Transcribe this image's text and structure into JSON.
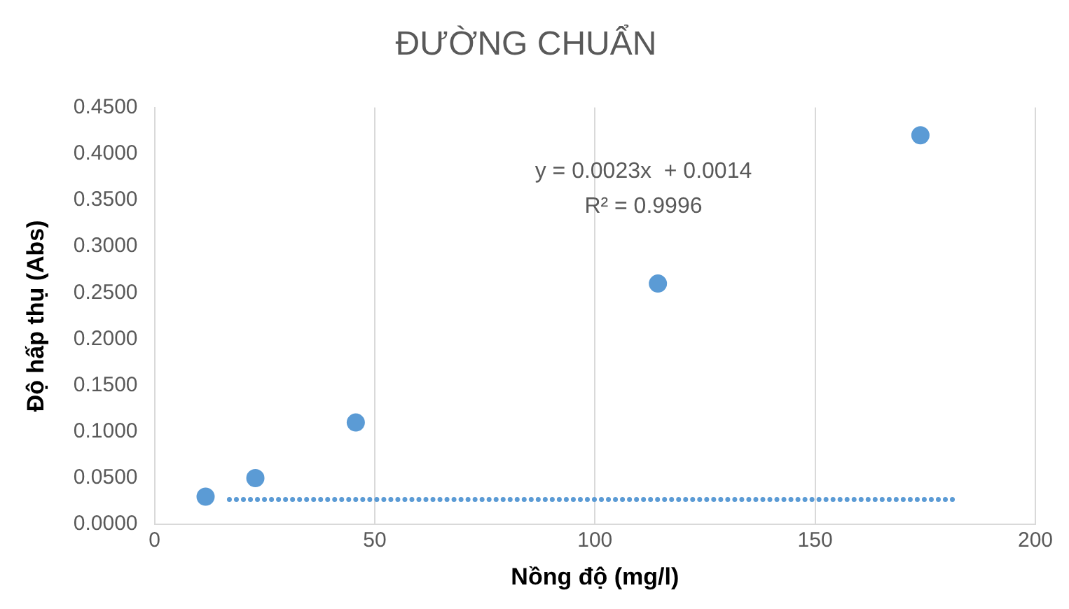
{
  "chart_data": {
    "type": "scatter",
    "title": "ĐƯỜNG CHUẨN",
    "xlabel": "Nồng độ (mg/l)",
    "ylabel": "Độ hấp thụ (Abs)",
    "series": [
      {
        "color": "#5b9bd5",
        "marker": "circle",
        "x": [
          11.6,
          22.9,
          45.7,
          114.3,
          173.9
        ],
        "values": [
          0.03,
          0.05,
          0.11,
          0.26,
          0.42
        ]
      },
      {
        "type": "line",
        "color": "#5b9bd5",
        "line_style": "dotted",
        "marker": "none",
        "x": [
          17,
          182
        ],
        "values": [
          0.027,
          0.027
        ]
      }
    ],
    "xlim": [
      0,
      200
    ],
    "xticks": [
      0,
      50,
      100,
      150,
      200
    ],
    "ylim": [
      0,
      0.45
    ],
    "yticks": [
      {
        "value": 0,
        "label": "0.0000"
      },
      {
        "value": 0.05,
        "label": "0.0500"
      },
      {
        "value": 0.1,
        "label": "0.1000"
      },
      {
        "value": 0.15,
        "label": "0.1500"
      },
      {
        "value": 0.2,
        "label": "0.2000"
      },
      {
        "value": 0.25,
        "label": "0.2500"
      },
      {
        "value": 0.3,
        "label": "0.3000"
      },
      {
        "value": 0.35,
        "label": "0.3500"
      },
      {
        "value": 0.4,
        "label": "0.4000"
      },
      {
        "value": 0.45,
        "label": "0.4500"
      }
    ],
    "grid": "x",
    "legend": false,
    "annotations": [
      "y = 0.0023x  + 0.0014",
      "R² = 0.9996"
    ]
  }
}
